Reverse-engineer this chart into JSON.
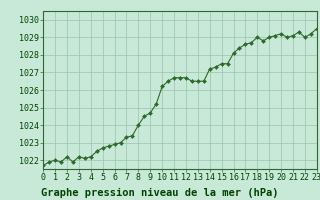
{
  "x": [
    0,
    0.5,
    1,
    1.5,
    2,
    2.5,
    3,
    3.5,
    4,
    4.5,
    5,
    5.5,
    6,
    6.5,
    7,
    7.5,
    8,
    8.5,
    9,
    9.5,
    10,
    10.5,
    11,
    11.5,
    12,
    12.5,
    13,
    13.5,
    14,
    14.5,
    15,
    15.5,
    16,
    16.5,
    17,
    17.5,
    18,
    18.5,
    19,
    19.5,
    20,
    20.5,
    21,
    21.5,
    22,
    22.5,
    23
  ],
  "y": [
    1021.7,
    1021.9,
    1022.0,
    1021.9,
    1022.2,
    1021.9,
    1022.2,
    1022.1,
    1022.2,
    1022.5,
    1022.7,
    1022.8,
    1022.9,
    1023.0,
    1023.3,
    1023.4,
    1024.0,
    1024.5,
    1024.7,
    1025.2,
    1026.2,
    1026.5,
    1026.7,
    1026.7,
    1026.7,
    1026.5,
    1026.5,
    1026.5,
    1027.2,
    1027.3,
    1027.5,
    1027.5,
    1028.1,
    1028.4,
    1028.6,
    1028.7,
    1029.0,
    1028.8,
    1029.0,
    1029.1,
    1029.2,
    1029.0,
    1029.1,
    1029.3,
    1029.0,
    1029.2,
    1029.5
  ],
  "line_color": "#2d6a2d",
  "marker_color": "#2d6a2d",
  "bg_color": "#c8e8d8",
  "grid_color": "#99c4aa",
  "title": "Graphe pression niveau de la mer (hPa)",
  "xlim": [
    0,
    23
  ],
  "ylim": [
    1021.5,
    1030.5
  ],
  "yticks": [
    1022,
    1023,
    1024,
    1025,
    1026,
    1027,
    1028,
    1029,
    1030
  ],
  "xticks": [
    0,
    1,
    2,
    3,
    4,
    5,
    6,
    7,
    8,
    9,
    10,
    11,
    12,
    13,
    14,
    15,
    16,
    17,
    18,
    19,
    20,
    21,
    22,
    23
  ],
  "title_fontsize": 7.5,
  "tick_fontsize": 6,
  "title_color": "#004400",
  "tick_color": "#004400",
  "spine_color": "#336633"
}
